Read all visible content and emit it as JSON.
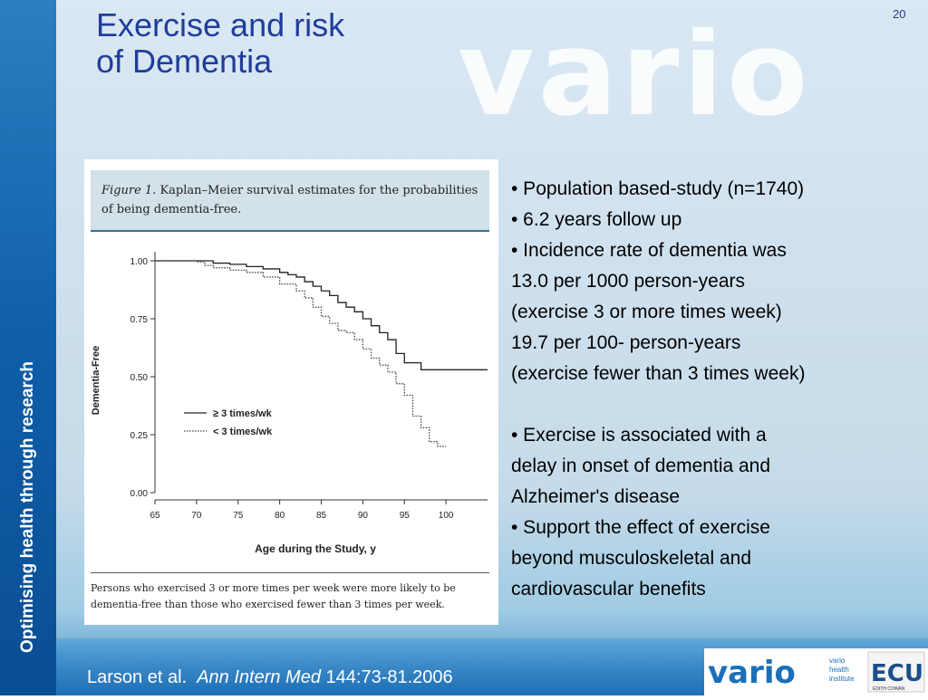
{
  "slide": {
    "title_line1": "Exercise and risk",
    "title_line2": "of Dementia",
    "page_number": "20",
    "sidebar_text": "Optimising health through research",
    "watermark": "vario"
  },
  "figure": {
    "caption_label": "Figure 1.",
    "caption_text": " Kaplan–Meier survival estimates for the probabilities of being dementia-free.",
    "footnote": "Persons who exercised 3 or more times per week were more likely to be dementia-free than those who exercised fewer than 3 times per week."
  },
  "chart_data": {
    "type": "line",
    "xlabel": "Age during the Study, y",
    "ylabel": "Dementia-Free",
    "xlim": [
      65,
      105
    ],
    "ylim": [
      0,
      1
    ],
    "x_ticks": [
      "65",
      "70",
      "75",
      "80",
      "85",
      "90",
      "95",
      "100"
    ],
    "y_ticks": [
      "1.00",
      "0.75",
      "0.50",
      "0.25",
      "0.00"
    ],
    "legend_position": "lower-left",
    "grid": false,
    "series": [
      {
        "name": "≥ 3 times/wk",
        "style": "solid",
        "color": "#222222",
        "x": [
          65,
          68,
          70,
          72,
          74,
          76,
          78,
          80,
          81,
          82,
          83,
          84,
          85,
          86,
          87,
          88,
          89,
          90,
          91,
          92,
          93,
          94,
          95,
          97,
          100,
          101,
          102,
          103,
          104,
          105
        ],
        "y": [
          1.0,
          1.0,
          1.0,
          0.99,
          0.985,
          0.975,
          0.965,
          0.95,
          0.94,
          0.93,
          0.91,
          0.89,
          0.87,
          0.85,
          0.82,
          0.8,
          0.78,
          0.75,
          0.72,
          0.69,
          0.66,
          0.6,
          0.56,
          0.53,
          0.53,
          0.53,
          0.53,
          0.53,
          0.53,
          0.53
        ]
      },
      {
        "name": "< 3 times/wk",
        "style": "dotted",
        "color": "#444444",
        "x": [
          65,
          70,
          71,
          72,
          74,
          76,
          78,
          80,
          82,
          83,
          84,
          85,
          86,
          87,
          88,
          89,
          90,
          91,
          92,
          93,
          94,
          95,
          96,
          97,
          98,
          99,
          100
        ],
        "y": [
          1.0,
          0.995,
          0.98,
          0.97,
          0.96,
          0.95,
          0.93,
          0.9,
          0.87,
          0.84,
          0.8,
          0.76,
          0.73,
          0.7,
          0.69,
          0.66,
          0.62,
          0.58,
          0.55,
          0.52,
          0.47,
          0.42,
          0.33,
          0.28,
          0.22,
          0.2,
          0.2
        ]
      }
    ]
  },
  "bullets": [
    "• Population based-study (n=1740)",
    "• 6.2 years follow up",
    "• Incidence rate of dementia was",
    "13.0 per 1000 person-years",
    "(exercise 3 or more times week)",
    "19.7 per 100- person-years",
    "(exercise fewer than 3 times week)",
    "",
    "• Exercise is associated with a",
    "delay in onset of dementia and",
    "Alzheimer's disease",
    "• Support the effect of  exercise",
    "beyond musculoskeletal and",
    "cardiovascular benefits"
  ],
  "citation": {
    "authors": "Larson et al.",
    "journal": "Ann Intern Med",
    "ref": "144:73-81.2006"
  },
  "logos": {
    "vario_sub": [
      "vario",
      "health",
      "institute"
    ],
    "ecu": "ECU",
    "ecu_sub": "EDITH COWAN"
  },
  "colors": {
    "title": "#1f3d9b",
    "sidebar": "#0f5ea8"
  }
}
